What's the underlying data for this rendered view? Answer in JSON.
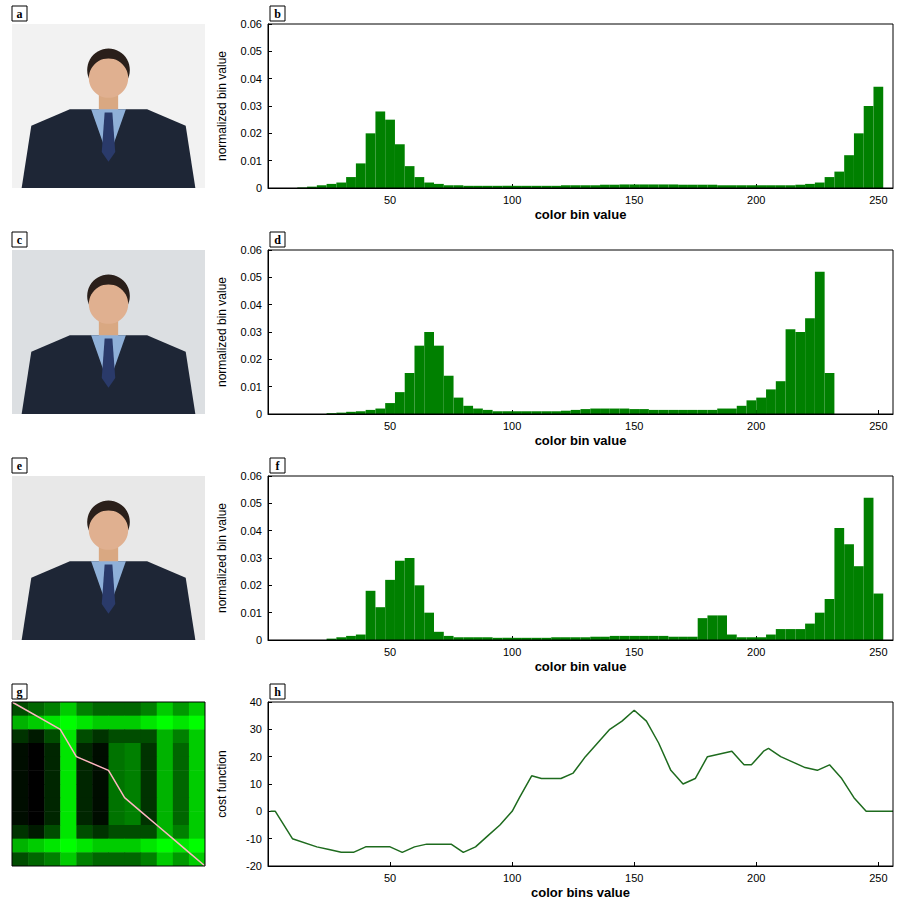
{
  "photos": [
    {
      "panel": "a"
    },
    {
      "panel": "c"
    },
    {
      "panel": "e"
    }
  ],
  "chart_data": [
    {
      "type": "histogram",
      "panel": "b",
      "color": "#008000",
      "xlabel": "color bin value",
      "ylabel": "normalized bin value",
      "xlim": [
        0,
        256
      ],
      "xticks": [
        50,
        100,
        150,
        200,
        250
      ],
      "ylim": [
        0,
        0.06
      ],
      "yticks": [
        0,
        0.01,
        0.02,
        0.03,
        0.04,
        0.05,
        0.06
      ],
      "grid": false,
      "bins": [
        0,
        4,
        8,
        12,
        16,
        20,
        24,
        28,
        32,
        36,
        40,
        44,
        48,
        52,
        56,
        60,
        64,
        68,
        72,
        76,
        80,
        84,
        88,
        92,
        96,
        100,
        104,
        108,
        112,
        116,
        120,
        124,
        128,
        132,
        136,
        140,
        144,
        148,
        152,
        156,
        160,
        164,
        168,
        172,
        176,
        180,
        184,
        188,
        192,
        196,
        200,
        204,
        208,
        212,
        216,
        220,
        224,
        228,
        232,
        236,
        240,
        244,
        248,
        252,
        256
      ],
      "values": [
        0,
        0,
        0,
        0.0002,
        0.0005,
        0.001,
        0.0015,
        0.002,
        0.004,
        0.009,
        0.02,
        0.028,
        0.025,
        0.016,
        0.008,
        0.004,
        0.002,
        0.0015,
        0.001,
        0.001,
        0.0008,
        0.0008,
        0.0008,
        0.0008,
        0.0008,
        0.0008,
        0.0008,
        0.0008,
        0.0008,
        0.0008,
        0.001,
        0.001,
        0.001,
        0.001,
        0.0012,
        0.0012,
        0.0013,
        0.0013,
        0.0013,
        0.0013,
        0.0013,
        0.0013,
        0.0012,
        0.0012,
        0.0012,
        0.0012,
        0.001,
        0.001,
        0.001,
        0.001,
        0.001,
        0.001,
        0.001,
        0.001,
        0.0012,
        0.0015,
        0.002,
        0.004,
        0.006,
        0.012,
        0.02,
        0.03,
        0.037,
        0
      ]
    },
    {
      "type": "histogram",
      "panel": "d",
      "color": "#008000",
      "xlabel": "color bin value",
      "ylabel": "normalized bin value",
      "xlim": [
        0,
        256
      ],
      "xticks": [
        50,
        100,
        150,
        200,
        250
      ],
      "ylim": [
        0,
        0.06
      ],
      "yticks": [
        0,
        0.01,
        0.02,
        0.03,
        0.04,
        0.05,
        0.06
      ],
      "grid": false,
      "bins": [
        0,
        4,
        8,
        12,
        16,
        20,
        24,
        28,
        32,
        36,
        40,
        44,
        48,
        52,
        56,
        60,
        64,
        68,
        72,
        76,
        80,
        84,
        88,
        92,
        96,
        100,
        104,
        108,
        112,
        116,
        120,
        124,
        128,
        132,
        136,
        140,
        144,
        148,
        152,
        156,
        160,
        164,
        168,
        172,
        176,
        180,
        184,
        188,
        192,
        196,
        200,
        204,
        208,
        212,
        216,
        220,
        224,
        228,
        232,
        236,
        240,
        244,
        248,
        252,
        256
      ],
      "values": [
        0,
        0,
        0,
        0,
        0,
        0,
        0.0003,
        0.0005,
        0.0008,
        0.001,
        0.0015,
        0.002,
        0.004,
        0.008,
        0.015,
        0.025,
        0.03,
        0.025,
        0.014,
        0.006,
        0.003,
        0.002,
        0.0015,
        0.001,
        0.001,
        0.001,
        0.001,
        0.001,
        0.001,
        0.001,
        0.0012,
        0.0015,
        0.0018,
        0.002,
        0.002,
        0.002,
        0.002,
        0.0018,
        0.0018,
        0.0015,
        0.0015,
        0.0015,
        0.0015,
        0.0015,
        0.0015,
        0.0015,
        0.002,
        0.002,
        0.003,
        0.005,
        0.006,
        0.009,
        0.012,
        0.031,
        0.03,
        0.035,
        0.052,
        0.015,
        0,
        0,
        0,
        0,
        0,
        0
      ]
    },
    {
      "type": "histogram",
      "panel": "f",
      "color": "#008000",
      "xlabel": "color bin value",
      "ylabel": "normalized bin value",
      "xlim": [
        0,
        256
      ],
      "xticks": [
        50,
        100,
        150,
        200,
        250
      ],
      "ylim": [
        0,
        0.06
      ],
      "yticks": [
        0,
        0.01,
        0.02,
        0.03,
        0.04,
        0.05,
        0.06
      ],
      "grid": false,
      "bins": [
        0,
        4,
        8,
        12,
        16,
        20,
        24,
        28,
        32,
        36,
        40,
        44,
        48,
        52,
        56,
        60,
        64,
        68,
        72,
        76,
        80,
        84,
        88,
        92,
        96,
        100,
        104,
        108,
        112,
        116,
        120,
        124,
        128,
        132,
        136,
        140,
        144,
        148,
        152,
        156,
        160,
        164,
        168,
        172,
        176,
        180,
        184,
        188,
        192,
        196,
        200,
        204,
        208,
        212,
        216,
        220,
        224,
        228,
        232,
        236,
        240,
        244,
        248,
        252,
        256
      ],
      "values": [
        0,
        0,
        0,
        0,
        0,
        0,
        0.0005,
        0.001,
        0.0015,
        0.002,
        0.018,
        0.012,
        0.022,
        0.029,
        0.03,
        0.02,
        0.01,
        0.003,
        0.0015,
        0.001,
        0.001,
        0.001,
        0.001,
        0.0008,
        0.0008,
        0.0008,
        0.0008,
        0.0008,
        0.0008,
        0.001,
        0.001,
        0.001,
        0.001,
        0.0012,
        0.0012,
        0.0015,
        0.0015,
        0.0015,
        0.0015,
        0.0015,
        0.0015,
        0.0012,
        0.0012,
        0.0012,
        0.008,
        0.009,
        0.009,
        0.002,
        0.001,
        0.001,
        0.001,
        0.002,
        0.004,
        0.004,
        0.004,
        0.006,
        0.01,
        0.015,
        0.041,
        0.035,
        0.027,
        0.052,
        0.017,
        0
      ]
    },
    {
      "type": "heatmap",
      "panel": "g",
      "tick_labels": false,
      "range": [
        0,
        1
      ],
      "colors": [
        "#000000",
        "#00ff00"
      ],
      "cells": [
        [
          0.3,
          0.4,
          0.5,
          0.8,
          0.5,
          0.4,
          0.4,
          0.4,
          0.5,
          0.8,
          0.6,
          0.8
        ],
        [
          0.7,
          0.8,
          0.9,
          1,
          0.9,
          0.8,
          0.8,
          0.8,
          0.9,
          1,
          0.9,
          1
        ],
        [
          0.2,
          0.1,
          0.3,
          0.9,
          0.3,
          0.2,
          0.3,
          0.3,
          0.3,
          0.7,
          0.5,
          0.8
        ],
        [
          0.05,
          0,
          0.15,
          0.9,
          0.15,
          0.05,
          0.45,
          0.5,
          0.2,
          0.7,
          0.4,
          0.8
        ],
        [
          0.05,
          0,
          0.15,
          0.9,
          0.15,
          0.05,
          0.45,
          0.5,
          0.2,
          0.7,
          0.4,
          0.8
        ],
        [
          0.05,
          0,
          0.15,
          0.9,
          0.15,
          0.05,
          0.45,
          0.5,
          0.2,
          0.7,
          0.4,
          0.8
        ],
        [
          0.05,
          0,
          0.15,
          0.9,
          0.15,
          0.05,
          0.45,
          0.5,
          0.2,
          0.7,
          0.4,
          0.8
        ],
        [
          0.05,
          0,
          0.15,
          0.9,
          0.15,
          0.05,
          0.45,
          0.5,
          0.2,
          0.7,
          0.4,
          0.8
        ],
        [
          0.05,
          0,
          0.15,
          0.9,
          0.15,
          0.05,
          0.45,
          0.5,
          0.2,
          0.7,
          0.4,
          0.8
        ],
        [
          0.2,
          0.1,
          0.3,
          0.9,
          0.3,
          0.2,
          0.3,
          0.3,
          0.3,
          0.7,
          0.5,
          0.8
        ],
        [
          0.7,
          0.8,
          0.9,
          1,
          0.9,
          0.8,
          0.8,
          0.8,
          0.9,
          1,
          0.9,
          1
        ],
        [
          0.3,
          0.4,
          0.5,
          0.8,
          0.5,
          0.4,
          0.4,
          0.4,
          0.5,
          0.8,
          0.6,
          0.8
        ]
      ],
      "path": {
        "x": [
          0,
          3,
          4,
          6,
          7,
          8,
          9,
          10,
          11,
          12
        ],
        "y": [
          0,
          2,
          4,
          5,
          7,
          8,
          9,
          10,
          11,
          12
        ],
        "color": "#ffb6c1"
      }
    },
    {
      "type": "line",
      "panel": "h",
      "color": "#1e6b1e",
      "xlabel": "color bins value",
      "ylabel": "cost function",
      "xlim": [
        0,
        256
      ],
      "xticks": [
        50,
        100,
        150,
        200,
        250
      ],
      "ylim": [
        -20,
        40
      ],
      "yticks": [
        -20,
        -10,
        0,
        10,
        20,
        30,
        40
      ],
      "grid": false,
      "x": [
        1,
        3,
        10,
        20,
        25,
        30,
        35,
        40,
        50,
        55,
        60,
        65,
        75,
        80,
        85,
        90,
        95,
        100,
        103,
        108,
        112,
        120,
        125,
        130,
        135,
        140,
        145,
        150,
        155,
        160,
        165,
        170,
        175,
        180,
        190,
        195,
        198,
        203,
        205,
        210,
        215,
        220,
        225,
        230,
        235,
        240,
        245,
        256
      ],
      "values": [
        0,
        0,
        -10,
        -13,
        -14,
        -15,
        -15,
        -13,
        -13,
        -15,
        -13,
        -12,
        -12,
        -15,
        -13,
        -9,
        -5,
        0,
        5,
        13,
        12,
        12,
        14,
        20,
        25,
        30,
        33,
        37,
        33,
        25,
        15,
        10,
        12,
        20,
        22,
        17,
        17,
        22,
        23,
        20,
        18,
        16,
        15,
        17,
        12,
        5,
        0,
        0
      ]
    }
  ]
}
